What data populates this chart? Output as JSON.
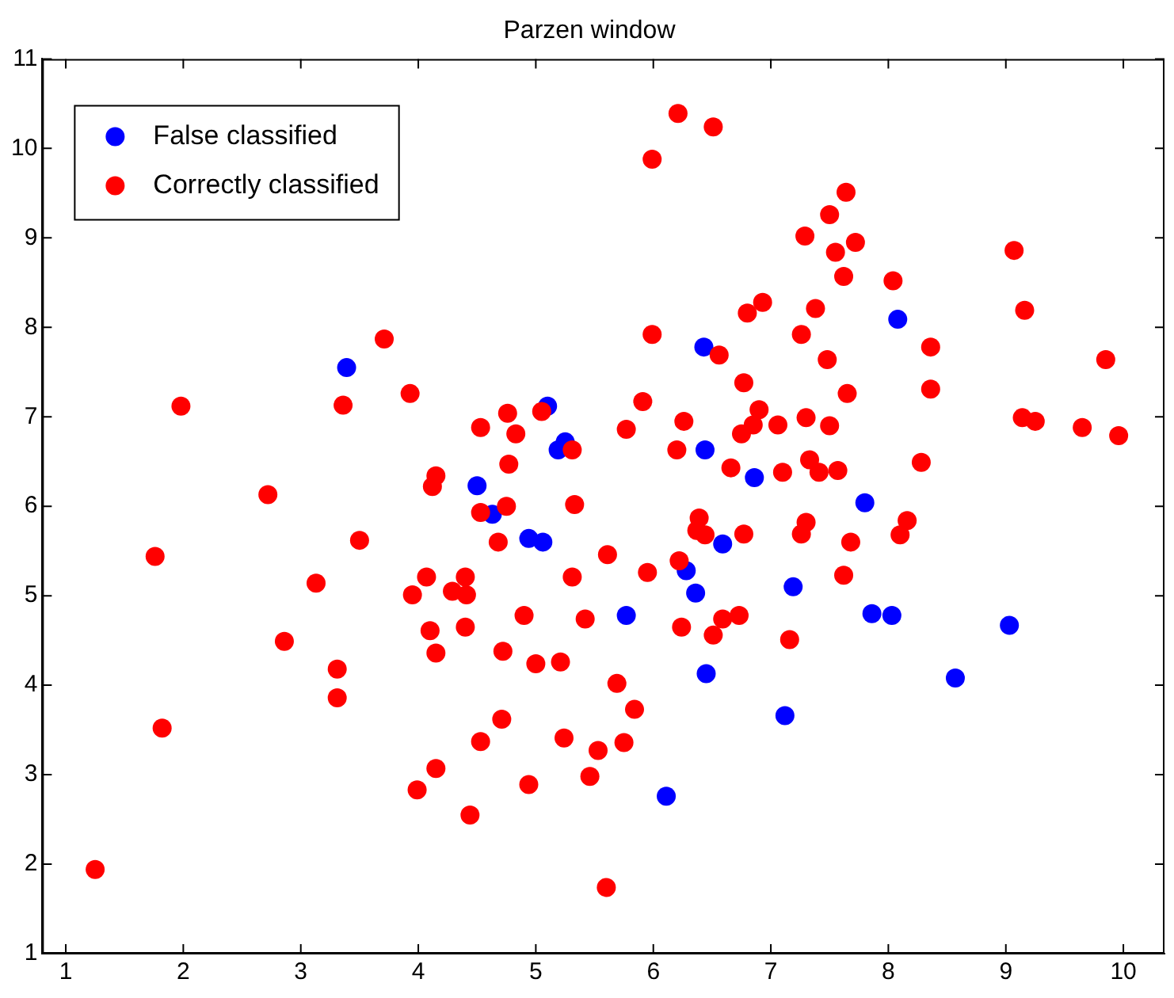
{
  "chart_data": {
    "type": "scatter",
    "title": "Parzen window",
    "xlim": [
      0.8,
      10.35
    ],
    "ylim": [
      1,
      11
    ],
    "xticks": [
      1,
      2,
      3,
      4,
      5,
      6,
      7,
      8,
      9,
      10
    ],
    "yticks": [
      1,
      2,
      3,
      4,
      5,
      6,
      7,
      8,
      9,
      10,
      11
    ],
    "grid": false,
    "legend": "top left",
    "marker": "circle",
    "series": [
      {
        "name": "False classified",
        "color": "#0000ff",
        "x": [
          3.39,
          6.43,
          8.08,
          6.86,
          6.44,
          5.1,
          5.25,
          5.19,
          4.5,
          4.63,
          4.94,
          5.06,
          6.28,
          6.36,
          5.77,
          6.59,
          7.19,
          7.8,
          7.86,
          8.03,
          9.03,
          8.57,
          6.45,
          7.12,
          6.11
        ],
        "values": [
          7.55,
          7.78,
          8.09,
          6.32,
          6.63,
          7.12,
          6.72,
          6.63,
          6.23,
          5.91,
          5.64,
          5.6,
          5.28,
          5.03,
          4.78,
          5.58,
          5.1,
          6.04,
          4.8,
          4.78,
          4.67,
          4.08,
          4.13,
          3.66,
          2.76
        ]
      },
      {
        "name": "Correctly classified",
        "color": "#ff0000",
        "x": [
          1.25,
          1.76,
          1.82,
          1.98,
          2.72,
          2.86,
          3.13,
          3.31,
          3.31,
          3.36,
          3.5,
          3.71,
          3.93,
          3.95,
          4.07,
          4.1,
          4.15,
          4.12,
          4.15,
          4.29,
          4.4,
          4.41,
          4.4,
          3.99,
          4.15,
          4.44,
          4.53,
          4.76,
          4.83,
          4.77,
          4.75,
          4.53,
          4.68,
          4.72,
          4.71,
          4.53,
          4.9,
          6.21,
          6.51,
          5.99,
          7.29,
          6.93,
          6.8,
          5.99,
          7.26,
          6.56,
          6.77,
          5.91,
          6.26,
          6.9,
          6.85,
          6.75,
          7.06,
          5.77,
          6.2,
          6.66,
          7.1,
          5.05,
          5.31,
          5.33,
          6.39,
          6.37,
          6.44,
          6.77,
          5.61,
          6.22,
          5.95,
          5.31,
          5.42,
          6.24,
          6.51,
          6.59,
          6.73,
          7.16,
          5.0,
          5.21,
          5.69,
          5.84,
          5.24,
          5.53,
          5.75,
          5.46,
          4.94,
          5.6,
          7.64,
          7.5,
          7.72,
          7.55,
          7.62,
          8.04,
          9.07,
          9.16,
          7.38,
          8.36,
          7.48,
          9.85,
          7.65,
          8.36,
          7.3,
          7.5,
          9.14,
          9.25,
          9.65,
          9.96,
          7.33,
          7.41,
          7.57,
          8.28,
          7.3,
          7.26,
          7.68,
          8.16,
          8.1,
          7.62
        ],
        "values": [
          1.94,
          5.44,
          3.52,
          7.12,
          6.13,
          4.49,
          5.14,
          4.18,
          3.86,
          7.13,
          5.62,
          7.87,
          7.26,
          5.01,
          5.21,
          4.61,
          4.36,
          6.22,
          6.34,
          5.05,
          5.21,
          5.01,
          4.65,
          2.83,
          3.07,
          2.55,
          6.88,
          7.04,
          6.81,
          6.47,
          6.0,
          5.93,
          5.6,
          4.38,
          3.62,
          3.37,
          4.78,
          10.39,
          10.24,
          9.88,
          9.02,
          8.28,
          8.16,
          7.92,
          7.92,
          7.69,
          7.38,
          7.17,
          6.95,
          7.08,
          6.91,
          6.81,
          6.91,
          6.86,
          6.63,
          6.43,
          6.38,
          7.06,
          6.63,
          6.02,
          5.87,
          5.73,
          5.68,
          5.69,
          5.46,
          5.39,
          5.26,
          5.21,
          4.74,
          4.65,
          4.56,
          4.74,
          4.78,
          4.51,
          4.24,
          4.26,
          4.02,
          3.73,
          3.41,
          3.27,
          3.36,
          2.98,
          2.89,
          1.74,
          9.51,
          9.26,
          8.95,
          8.84,
          8.57,
          8.52,
          8.86,
          8.19,
          8.21,
          7.78,
          7.64,
          7.64,
          7.26,
          7.31,
          6.99,
          6.9,
          6.99,
          6.95,
          6.88,
          6.79,
          6.52,
          6.38,
          6.4,
          6.49,
          5.82,
          5.69,
          5.6,
          5.84,
          5.68,
          5.23
        ]
      }
    ]
  }
}
